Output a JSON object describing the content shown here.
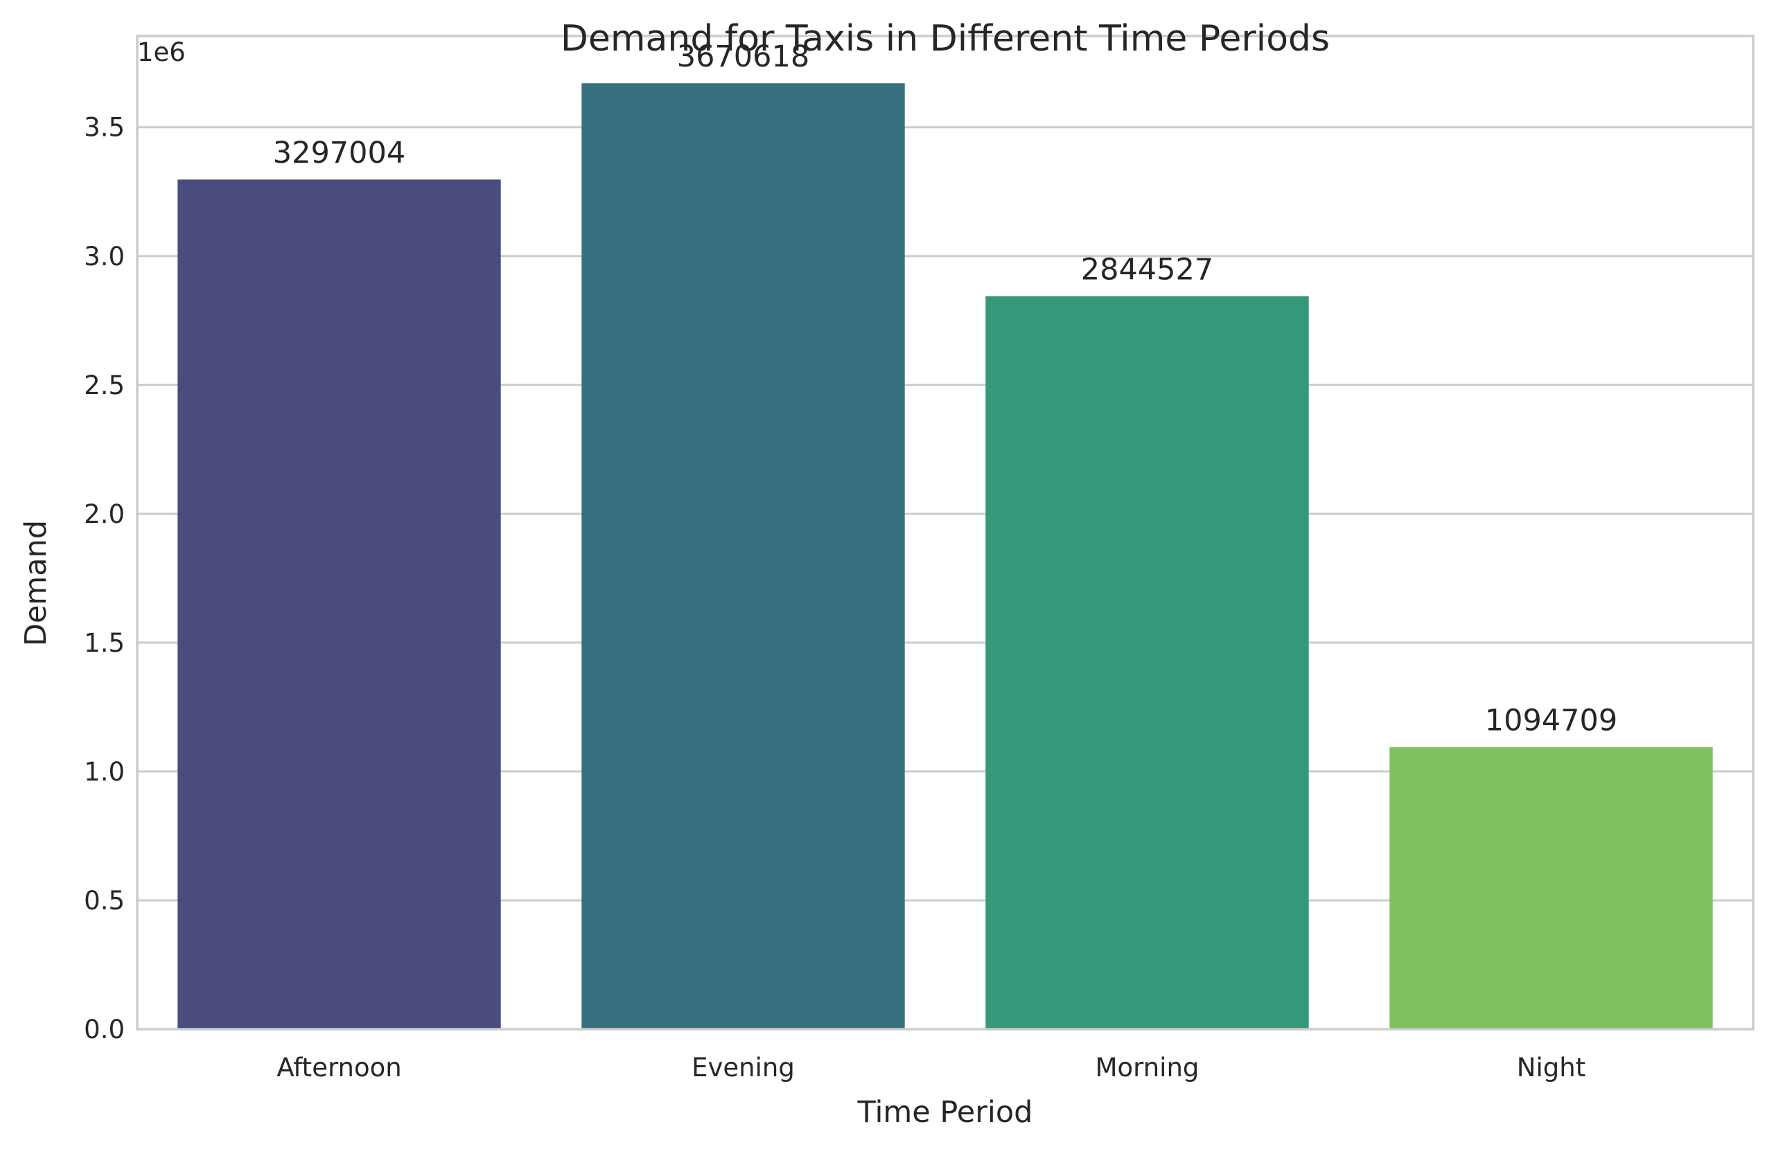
{
  "chart_data": {
    "type": "bar",
    "title": "Demand for Taxis in Different Time Periods",
    "xlabel": "Time Period",
    "ylabel": "Demand",
    "y_offset_label": "1e6",
    "categories": [
      "Afternoon",
      "Evening",
      "Morning",
      "Night"
    ],
    "values": [
      3297004,
      3670618,
      2844527,
      1094709
    ],
    "data_labels": [
      "3297004",
      "3670618",
      "2844527",
      "1094709"
    ],
    "colors": [
      "#4a4c7d",
      "#37717f",
      "#35987b",
      "#7fc15f"
    ],
    "ylim": [
      0,
      3854000
    ],
    "yticks": [
      0,
      500000,
      1000000,
      1500000,
      2000000,
      2500000,
      3000000,
      3500000
    ],
    "ytick_labels": [
      "0.0",
      "0.5",
      "1.0",
      "1.5",
      "2.0",
      "2.5",
      "3.0",
      "3.5"
    ],
    "grid": "horizontal",
    "legend": "none"
  }
}
